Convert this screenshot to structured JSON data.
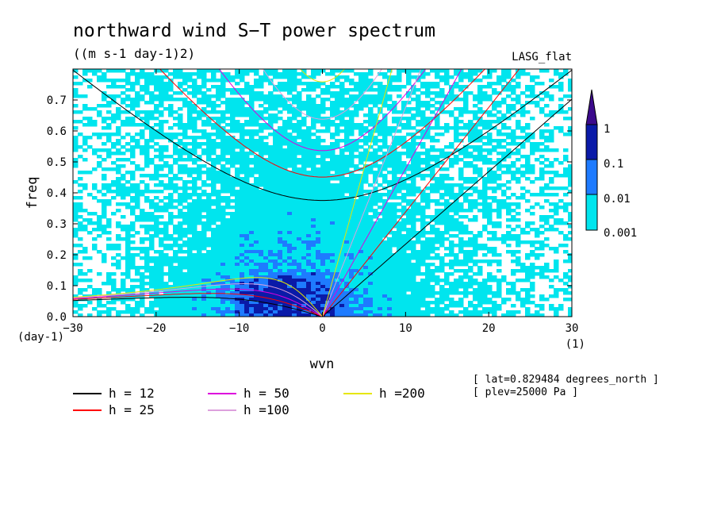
{
  "chart_data": {
    "type": "heatmap",
    "title": "northward wind S−T power spectrum",
    "subtitle": "((m s-1 day-1)2)",
    "source_label": "LASG_flat",
    "xlabel": "wvn",
    "ylabel": "freq",
    "x_unit": "(1)",
    "y_unit": "(day-1)",
    "xlim": [
      -30,
      30
    ],
    "ylim": [
      0,
      0.8
    ],
    "xticks": [
      -30,
      -20,
      -10,
      0,
      10,
      20,
      30
    ],
    "xtick_labels": [
      "−30",
      "−20",
      "−10",
      "0",
      "10",
      "20",
      "30"
    ],
    "yticks": [
      0,
      0.1,
      0.2,
      0.3,
      0.4,
      0.5,
      0.6,
      0.7
    ],
    "ytick_labels": [
      "0.0",
      "0.1",
      "0.2",
      "0.3",
      "0.4",
      "0.5",
      "0.6",
      "0.7"
    ],
    "colorbar": {
      "levels": [
        "0.001",
        "0.01",
        "0.1",
        "1"
      ],
      "colors": [
        "#ffffff",
        "#00e5ee",
        "#1e7bff",
        "#0a1aa8",
        "#3c0a8c"
      ]
    },
    "dispersion_curves": [
      {
        "name": "h = 12",
        "h": 12,
        "color": "#000000"
      },
      {
        "name": "h = 25",
        "h": 25,
        "color": "#ff0000"
      },
      {
        "name": "h = 50",
        "h": 50,
        "color": "#dd00dd"
      },
      {
        "name": "h =100",
        "h": 100,
        "color": "#dda0dd"
      },
      {
        "name": "h =200",
        "h": 200,
        "color": "#e6e600"
      }
    ],
    "annotations": [
      "[ lat=0.829484 degrees_north ]",
      "[ plev=25000 Pa ]"
    ],
    "grid": false
  }
}
